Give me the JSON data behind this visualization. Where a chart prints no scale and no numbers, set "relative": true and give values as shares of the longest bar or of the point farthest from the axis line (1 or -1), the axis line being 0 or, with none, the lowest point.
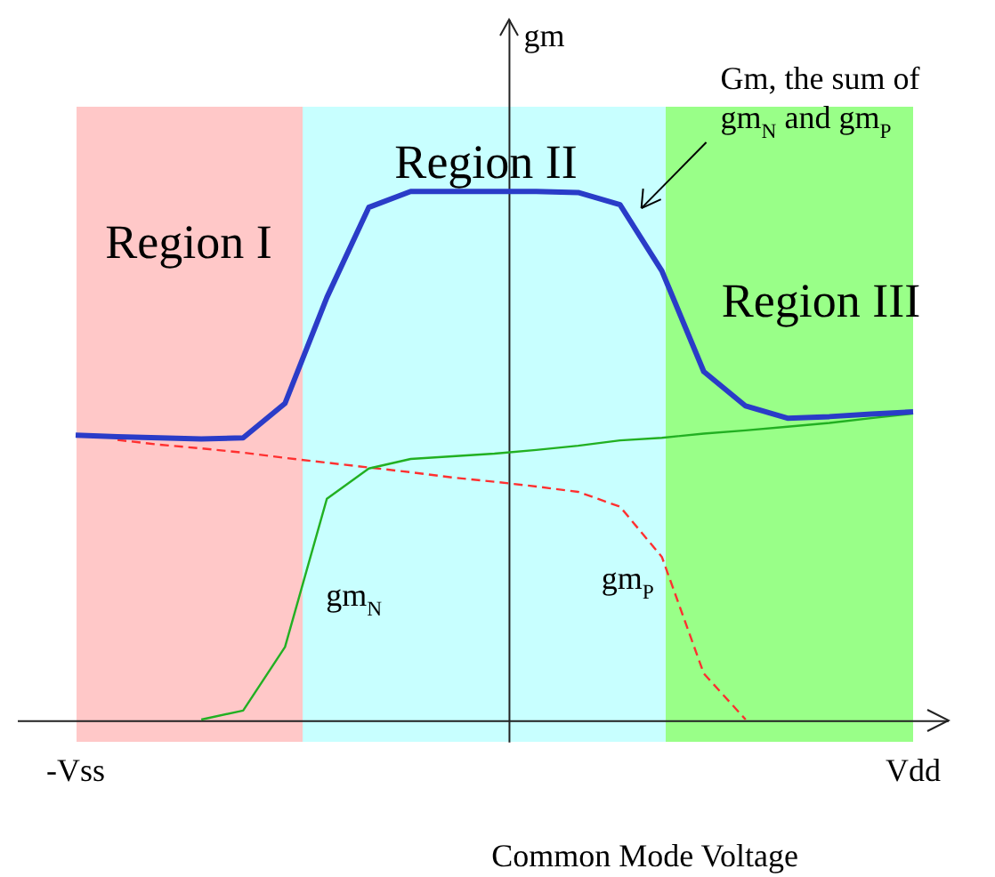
{
  "chart_data": {
    "type": "line",
    "relative": true,
    "xlabel": "Common Mode Voltage",
    "ylabel": "gm",
    "categories": [
      "-Vss",
      null,
      null,
      null,
      null,
      null,
      null,
      null,
      null,
      null,
      null,
      null,
      null,
      null,
      null,
      null,
      null,
      null,
      null,
      null,
      "Vdd"
    ],
    "grid": false,
    "legend": false,
    "marker": "none",
    "annotations": [
      "Region I",
      "Region II",
      "Region III",
      "Gm, the sum of gm$_{N}$ and gm$_{P}$"
    ],
    "series": [
      {
        "color": "#2a3cc8",
        "line_style": "solid",
        "values": [
          0.54,
          0.537,
          0.535,
          0.533,
          0.535,
          0.6,
          0.8,
          0.97,
          1,
          1,
          1,
          1,
          0.998,
          0.975,
          0.85,
          0.66,
          0.595,
          0.572,
          0.575,
          0.58,
          0.584
        ]
      },
      {
        "name": "gm$_{N}$",
        "color": "#22b022",
        "line_style": "solid",
        "values": [
          null,
          null,
          null,
          0.003,
          0.02,
          0.14,
          0.42,
          0.477,
          0.495,
          0.5,
          0.505,
          0.512,
          0.52,
          0.53,
          0.535,
          0.543,
          0.549,
          0.556,
          0.563,
          0.572,
          0.581
        ]
      },
      {
        "name": "gm$_{P}$",
        "color": "#ff3030",
        "line_style": "dashed",
        "values": [
          null,
          0.531,
          0.522,
          0.515,
          0.507,
          0.497,
          0.488,
          0.479,
          0.47,
          0.46,
          0.452,
          0.443,
          0.433,
          0.405,
          0.31,
          0.09,
          0.003,
          null,
          null,
          null,
          null
        ]
      }
    ]
  }
}
